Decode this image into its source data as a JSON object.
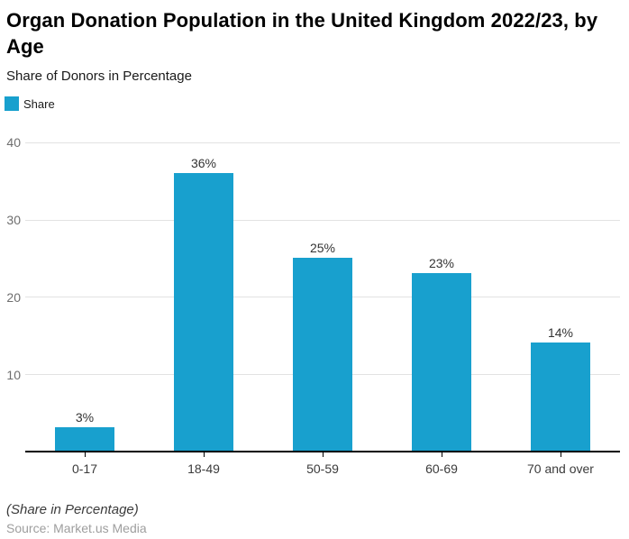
{
  "chart_data": {
    "type": "bar",
    "title": "Organ Donation Population in the United Kingdom 2022/23, by Age",
    "subtitle": "Share of Donors in Percentage",
    "series_name": "Share",
    "categories": [
      "0-17",
      "18-49",
      "50-59",
      "60-69",
      "70 and over"
    ],
    "values": [
      3,
      36,
      25,
      23,
      14
    ],
    "data_labels": [
      "3%",
      "36%",
      "25%",
      "23%",
      "14%"
    ],
    "xlabel": "",
    "ylabel": "",
    "ylim": [
      0,
      40
    ],
    "yticks": [
      40,
      30,
      20,
      10
    ],
    "grid": true,
    "legend_position": "top-left"
  },
  "footer": {
    "note": "(Share in Percentage)",
    "source": "Source: Market.us Media"
  },
  "colors": {
    "bar": "#18A0CE",
    "gridline": "#E2E2E2",
    "axis": "#000000",
    "y_tick_text": "#6E6E6E",
    "x_tick_text": "#3B3B3B",
    "value_text": "#333333",
    "source_text": "#9E9E9E"
  }
}
